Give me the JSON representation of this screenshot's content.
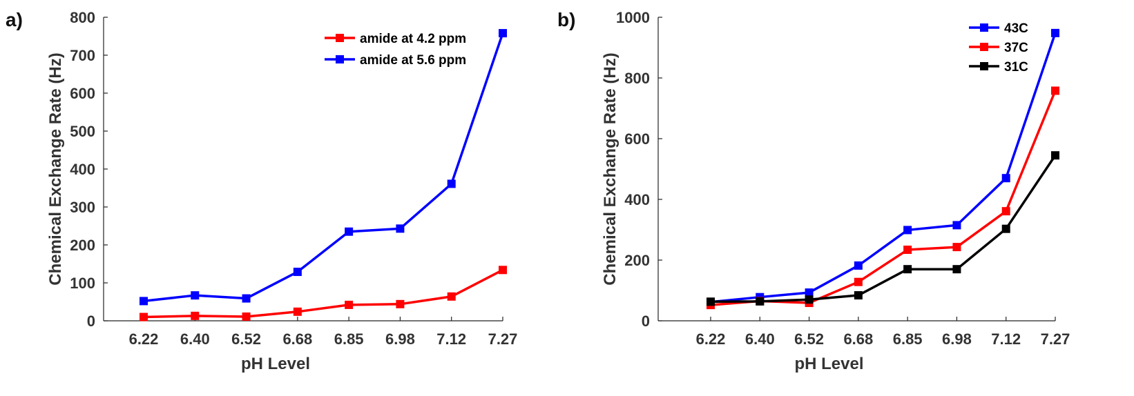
{
  "chart_data": [
    {
      "type": "line",
      "panel_label": "a)",
      "categories": [
        "6.22",
        "6.40",
        "6.52",
        "6.68",
        "6.85",
        "6.98",
        "7.12",
        "7.27"
      ],
      "xlabel": "pH Level",
      "ylabel": "Chemical Exchange Rate (Hz)",
      "ylim": [
        0,
        800
      ],
      "yticks": [
        "0",
        "100",
        "200",
        "300",
        "400",
        "500",
        "600",
        "700",
        "800"
      ],
      "legend_position": "top-right",
      "series": [
        {
          "name": "amide at 4.2 ppm",
          "color": "#ff0000",
          "values": [
            10,
            13,
            11,
            24,
            42,
            44,
            64,
            134
          ]
        },
        {
          "name": "amide at 5.6 ppm",
          "color": "#0000ff",
          "values": [
            52,
            67,
            59,
            129,
            235,
            243,
            361,
            758
          ]
        }
      ]
    },
    {
      "type": "line",
      "panel_label": "b)",
      "categories": [
        "6.22",
        "6.40",
        "6.52",
        "6.68",
        "6.85",
        "6.98",
        "7.12",
        "7.27"
      ],
      "xlabel": "pH Level",
      "ylabel": "Chemical Exchange Rate (Hz)",
      "ylim": [
        0,
        1000
      ],
      "yticks": [
        "0",
        "200",
        "400",
        "600",
        "800",
        "1000"
      ],
      "legend_position": "top-right",
      "series": [
        {
          "name": "43C",
          "color": "#0000ff",
          "values": [
            62,
            78,
            93,
            182,
            299,
            315,
            470,
            948
          ]
        },
        {
          "name": "37C",
          "color": "#ff0000",
          "values": [
            52,
            65,
            59,
            128,
            234,
            243,
            361,
            758
          ]
        },
        {
          "name": "31C",
          "color": "#000000",
          "values": [
            63,
            64,
            70,
            84,
            170,
            170,
            303,
            545
          ]
        }
      ]
    }
  ]
}
